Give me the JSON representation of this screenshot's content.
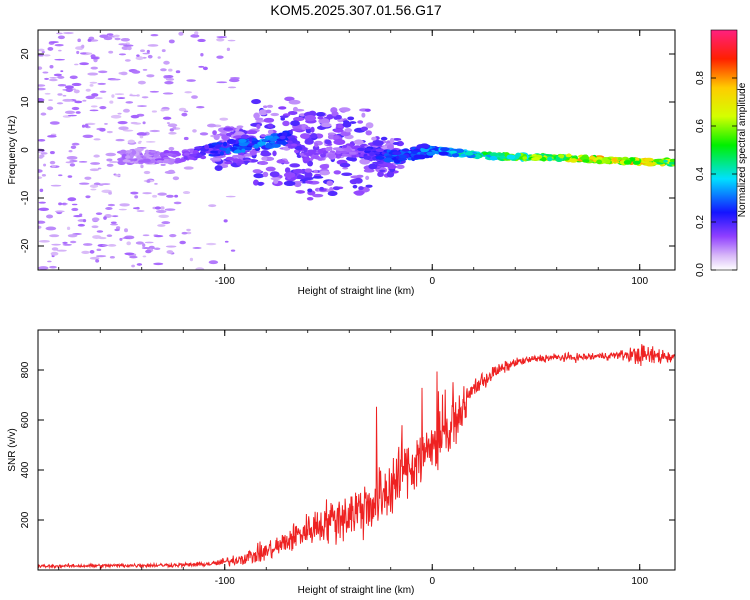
{
  "title": "KOM5.2025.307.01.56.G17",
  "chart_data": [
    {
      "type": "heatmap",
      "name": "spectrogram",
      "xlabel": "Height of straight line (km)",
      "ylabel": "Frequency (Hz)",
      "xlim": [
        -190,
        117
      ],
      "ylim": [
        -25,
        25
      ],
      "xticks": [
        -100,
        0,
        100
      ],
      "yticks": [
        -20,
        -10,
        0,
        10,
        20
      ],
      "colorbar": {
        "label": "Normalized spectral amplitude",
        "range": [
          0,
          1
        ],
        "ticks": [
          0.0,
          0.2,
          0.4,
          0.6,
          0.8
        ]
      },
      "ridge": {
        "x": [
          -140,
          -120,
          -100,
          -80,
          -70,
          -60,
          -40,
          -20,
          0,
          20,
          40,
          60,
          80,
          100,
          117
        ],
        "freq": [
          -1.5,
          -1.5,
          0.5,
          1.5,
          2.5,
          -1.5,
          0,
          -1.5,
          0,
          -1,
          -1.5,
          -1.5,
          -2,
          -2.5,
          -2.5
        ],
        "amplitude": [
          0.12,
          0.15,
          0.3,
          0.35,
          0.25,
          0.15,
          0.15,
          0.3,
          0.35,
          0.5,
          0.6,
          0.7,
          0.8,
          0.8,
          0.6
        ]
      }
    },
    {
      "type": "line",
      "name": "snr",
      "xlabel": "Height of straight line (km)",
      "ylabel": "SNR (v/v)",
      "xlim": [
        -190,
        117
      ],
      "ylim": [
        0,
        960
      ],
      "xticks": [
        -100,
        0,
        100
      ],
      "yticks": [
        200,
        400,
        600,
        800
      ],
      "color": "#ee2222",
      "trend": {
        "x": [
          -190,
          -120,
          -105,
          -95,
          -85,
          -75,
          -65,
          -55,
          -45,
          -35,
          -25,
          -20,
          -15,
          -10,
          -5,
          0,
          5,
          10,
          15,
          20,
          30,
          40,
          50,
          60,
          70,
          80,
          90,
          100,
          110,
          117
        ],
        "y": [
          15,
          20,
          25,
          40,
          60,
          90,
          140,
          180,
          210,
          240,
          300,
          330,
          380,
          420,
          460,
          500,
          530,
          580,
          650,
          730,
          790,
          830,
          845,
          850,
          850,
          855,
          860,
          860,
          855,
          855
        ]
      },
      "noise": {
        "x": [
          -190,
          -110,
          -100,
          -60,
          -40,
          -20,
          0,
          20,
          40,
          90,
          100,
          117
        ],
        "y": [
          6,
          8,
          15,
          60,
          100,
          130,
          110,
          40,
          15,
          15,
          40,
          25
        ]
      }
    }
  ]
}
